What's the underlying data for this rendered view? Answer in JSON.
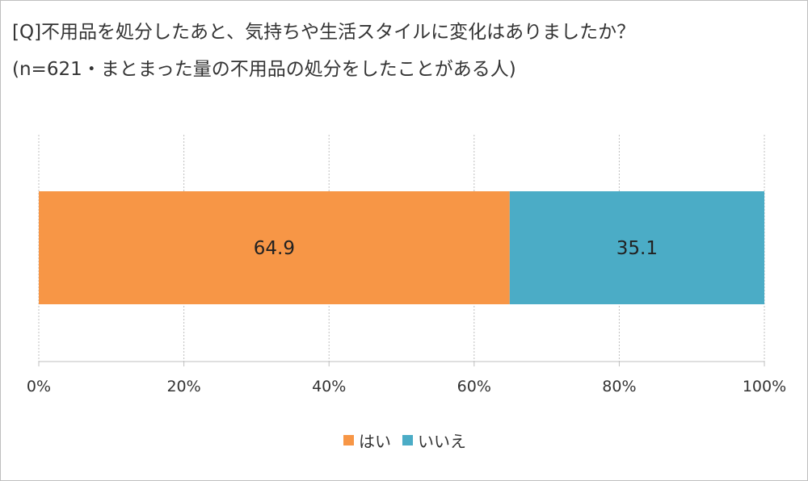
{
  "chart_data": {
    "type": "bar",
    "orientation": "horizontal-stacked",
    "title_lines": [
      "[Q]不用品を処分したあと、気持ちや生活スタイルに変化はありましたか？",
      "(n=621・まとまった量の不用品の処分をしたことがある人)"
    ],
    "categories": [
      ""
    ],
    "series": [
      {
        "name": "はい",
        "values": [
          64.9
        ],
        "label": "64.9",
        "color": "#F79646"
      },
      {
        "name": "いいえ",
        "values": [
          35.1
        ],
        "label": "35.1",
        "color": "#4BACC6"
      }
    ],
    "xlim": [
      0,
      100
    ],
    "x_ticks": [
      0,
      20,
      40,
      60,
      80,
      100
    ],
    "x_tick_labels": [
      "0%",
      "20%",
      "40%",
      "60%",
      "80%",
      "100%"
    ],
    "grid": "vertical dotted",
    "legend_position": "bottom"
  }
}
